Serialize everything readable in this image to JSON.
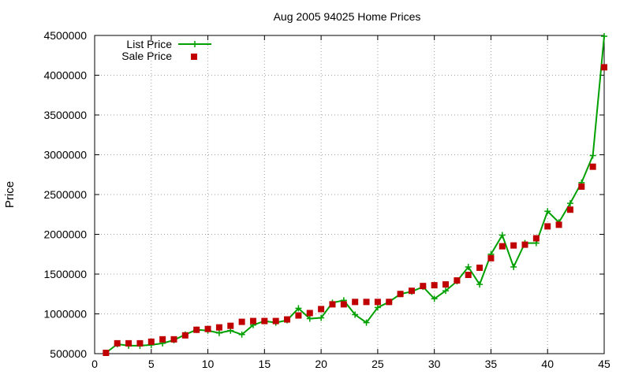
{
  "chart_data": {
    "type": "line",
    "title": "Aug 2005 94025 Home Prices",
    "xlabel": "",
    "ylabel": "Price",
    "xlim": [
      0,
      45
    ],
    "ylim": [
      500000,
      4500000
    ],
    "x_ticks": [
      0,
      5,
      10,
      15,
      20,
      25,
      30,
      35,
      40,
      45
    ],
    "y_ticks": [
      500000,
      1000000,
      1500000,
      2000000,
      2500000,
      3000000,
      3500000,
      4000000,
      4500000
    ],
    "grid": true,
    "legend_position": "top-left",
    "series": [
      {
        "name": "List Price",
        "style": "line-plus",
        "color": "#00a000",
        "x": [
          1,
          2,
          3,
          4,
          5,
          6,
          7,
          8,
          9,
          10,
          11,
          12,
          13,
          14,
          15,
          16,
          17,
          18,
          19,
          20,
          21,
          22,
          23,
          24,
          25,
          26,
          27,
          28,
          29,
          30,
          31,
          32,
          33,
          34,
          35,
          36,
          37,
          38,
          39,
          40,
          41,
          42,
          43,
          44,
          45
        ],
        "y": [
          510000,
          620000,
          600000,
          600000,
          610000,
          630000,
          670000,
          740000,
          800000,
          790000,
          760000,
          790000,
          740000,
          860000,
          910000,
          890000,
          920000,
          1070000,
          940000,
          950000,
          1140000,
          1170000,
          990000,
          890000,
          1080000,
          1150000,
          1250000,
          1280000,
          1340000,
          1190000,
          1290000,
          1410000,
          1590000,
          1370000,
          1750000,
          1990000,
          1590000,
          1890000,
          1890000,
          2290000,
          2150000,
          2390000,
          2650000,
          2990000,
          4490000
        ]
      },
      {
        "name": "Sale Price",
        "style": "square-markers",
        "color": "#c00000",
        "x": [
          1,
          2,
          3,
          4,
          5,
          6,
          7,
          8,
          9,
          10,
          11,
          12,
          13,
          14,
          15,
          16,
          17,
          18,
          19,
          20,
          21,
          22,
          23,
          24,
          25,
          26,
          27,
          28,
          29,
          30,
          31,
          32,
          33,
          34,
          35,
          36,
          37,
          38,
          39,
          40,
          41,
          42,
          43,
          44,
          45
        ],
        "y": [
          510000,
          630000,
          630000,
          630000,
          650000,
          680000,
          680000,
          730000,
          800000,
          810000,
          830000,
          850000,
          900000,
          910000,
          910000,
          910000,
          930000,
          980000,
          1010000,
          1060000,
          1120000,
          1120000,
          1150000,
          1150000,
          1150000,
          1150000,
          1250000,
          1290000,
          1350000,
          1360000,
          1370000,
          1420000,
          1490000,
          1580000,
          1700000,
          1850000,
          1860000,
          1870000,
          1950000,
          2100000,
          2120000,
          2310000,
          2600000,
          2850000,
          4100000
        ]
      }
    ]
  }
}
